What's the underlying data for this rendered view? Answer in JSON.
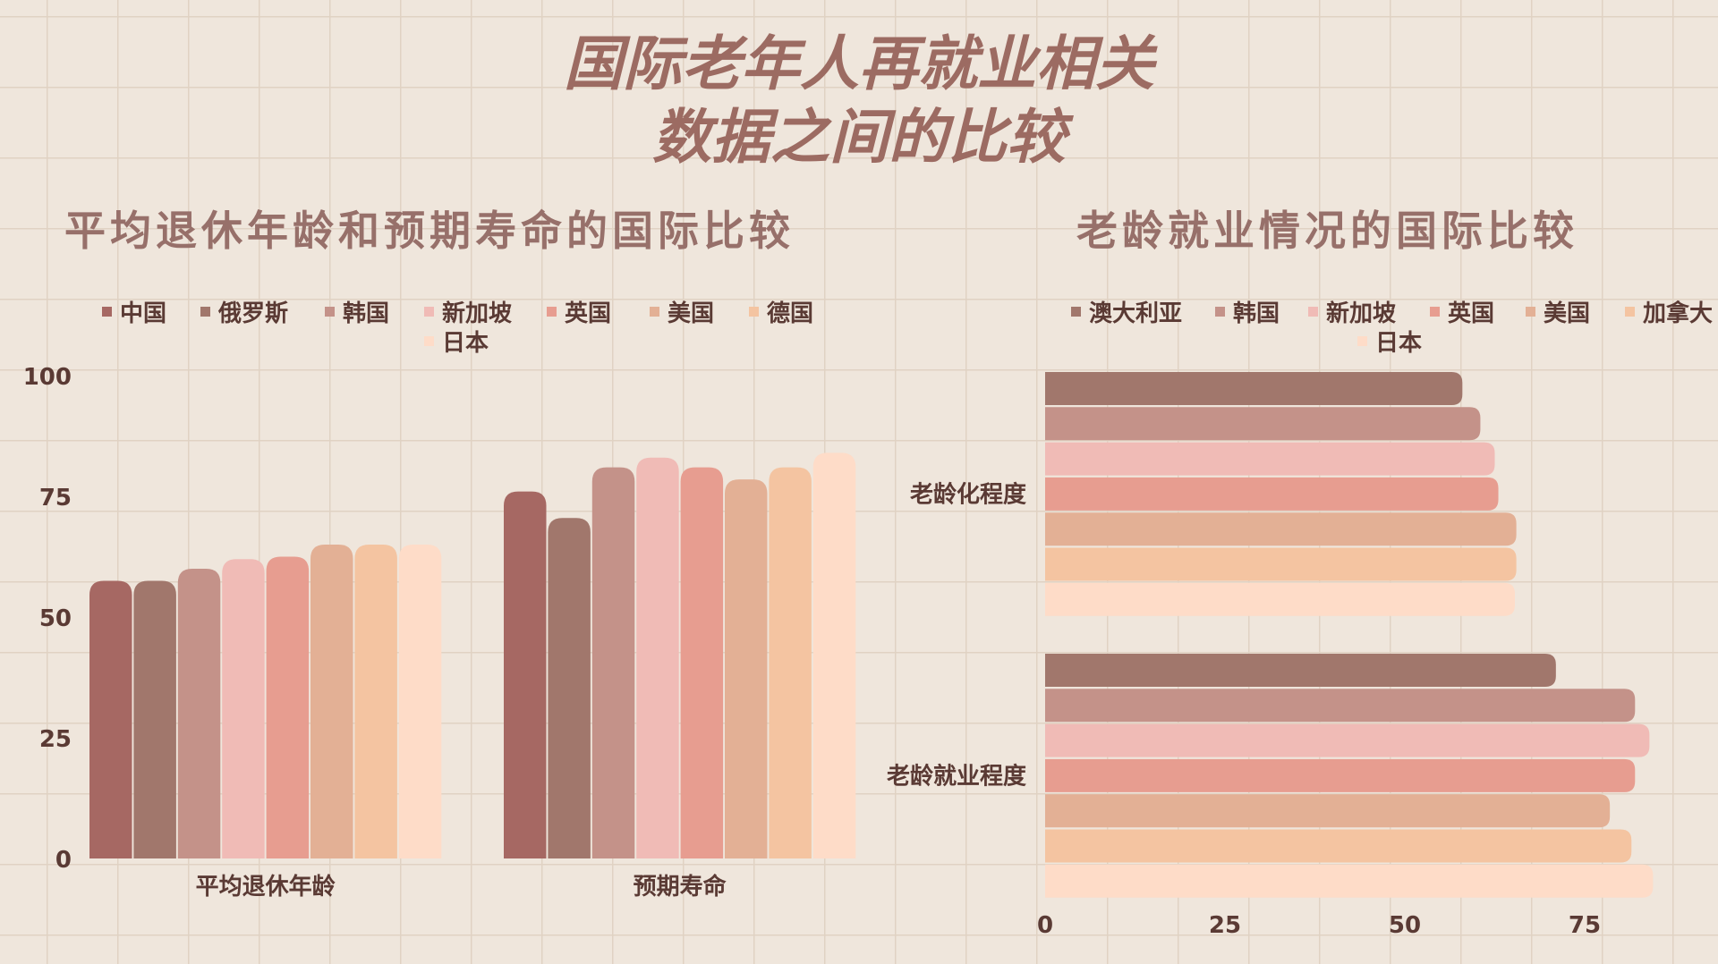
{
  "main_title": {
    "line1": "国际老年人再就业相关",
    "line2": "数据之间的比较"
  },
  "colors": [
    "#a66863",
    "#a1776c",
    "#c49289",
    "#f0bbb6",
    "#e79d90",
    "#e3b095",
    "#f4c4a1",
    "#fedcc8"
  ],
  "chart_data": [
    {
      "type": "bar",
      "orientation": "vertical",
      "title": "平均退休年龄和预期寿命的国际比较",
      "categories": [
        "平均退休年龄",
        "预期寿命"
      ],
      "series": [
        {
          "name": "中国",
          "values": [
            57.5,
            76
          ]
        },
        {
          "name": "俄罗斯",
          "values": [
            57.5,
            70.5
          ]
        },
        {
          "name": "韩国",
          "values": [
            60,
            81
          ]
        },
        {
          "name": "新加坡",
          "values": [
            62,
            83
          ]
        },
        {
          "name": "英国",
          "values": [
            62.5,
            81
          ]
        },
        {
          "name": "美国",
          "values": [
            65,
            78.5
          ]
        },
        {
          "name": "德国",
          "values": [
            65,
            81
          ]
        },
        {
          "name": "日本",
          "values": [
            65,
            84
          ]
        }
      ],
      "yticks": [
        "0",
        "25",
        "50",
        "75",
        "100"
      ],
      "ylim": [
        0,
        100
      ],
      "legend_position": "top",
      "grid": false
    },
    {
      "type": "bar",
      "orientation": "horizontal",
      "title": "老龄就业情况的国际比较",
      "categories": [
        "老龄化程度",
        "老龄就业程度"
      ],
      "series": [
        {
          "name": "澳大利亚",
          "values": [
            58,
            71
          ]
        },
        {
          "name": "韩国",
          "values": [
            60.5,
            82
          ]
        },
        {
          "name": "新加坡",
          "values": [
            62.5,
            84
          ]
        },
        {
          "name": "英国",
          "values": [
            63,
            82
          ]
        },
        {
          "name": "美国",
          "values": [
            65.5,
            78.5
          ]
        },
        {
          "name": "加拿大",
          "values": [
            65.5,
            81.5
          ]
        },
        {
          "name": "日本",
          "values": [
            65.3,
            84.5
          ]
        }
      ],
      "xticks": [
        "0",
        "25",
        "50",
        "75"
      ],
      "xlim": [
        0,
        84
      ],
      "legend_position": "top",
      "grid": false
    }
  ]
}
